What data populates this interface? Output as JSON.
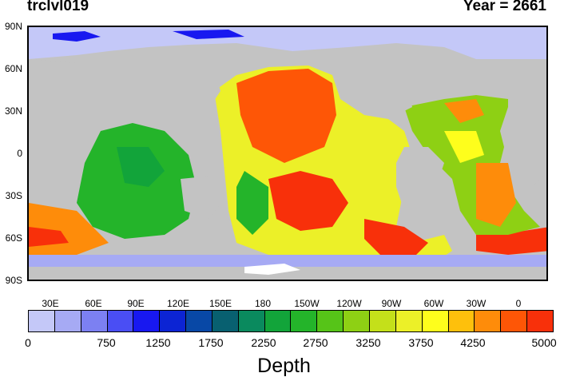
{
  "header": {
    "variable": "trclvl019",
    "year": "Year = 2661"
  },
  "map": {
    "lat_labels": [
      "90N",
      "60N",
      "30N",
      "0",
      "30S",
      "60S",
      "90S"
    ],
    "lon_labels": [
      "30E",
      "60E",
      "90E",
      "120E",
      "150E",
      "180",
      "150W",
      "120W",
      "90W",
      "60W",
      "30W",
      "0"
    ],
    "land_color": "#c3c3c3",
    "ice_color": "#ffffff"
  },
  "colorbar": {
    "colors": [
      "#c4c8f8",
      "#a6aaf4",
      "#7c80f2",
      "#4a4ef4",
      "#1818f0",
      "#0c24d4",
      "#0848a6",
      "#086070",
      "#0a8a5e",
      "#12a43a",
      "#24b42a",
      "#56c418",
      "#8ed014",
      "#c4e01a",
      "#ecf028",
      "#fefe1c",
      "#fec00c",
      "#fe8c0a",
      "#fe5606",
      "#f8300a"
    ],
    "tick_labels": [
      "0",
      "750",
      "1250",
      "1750",
      "2250",
      "2750",
      "3250",
      "3750",
      "4250",
      "5000"
    ],
    "title": "Depth"
  }
}
